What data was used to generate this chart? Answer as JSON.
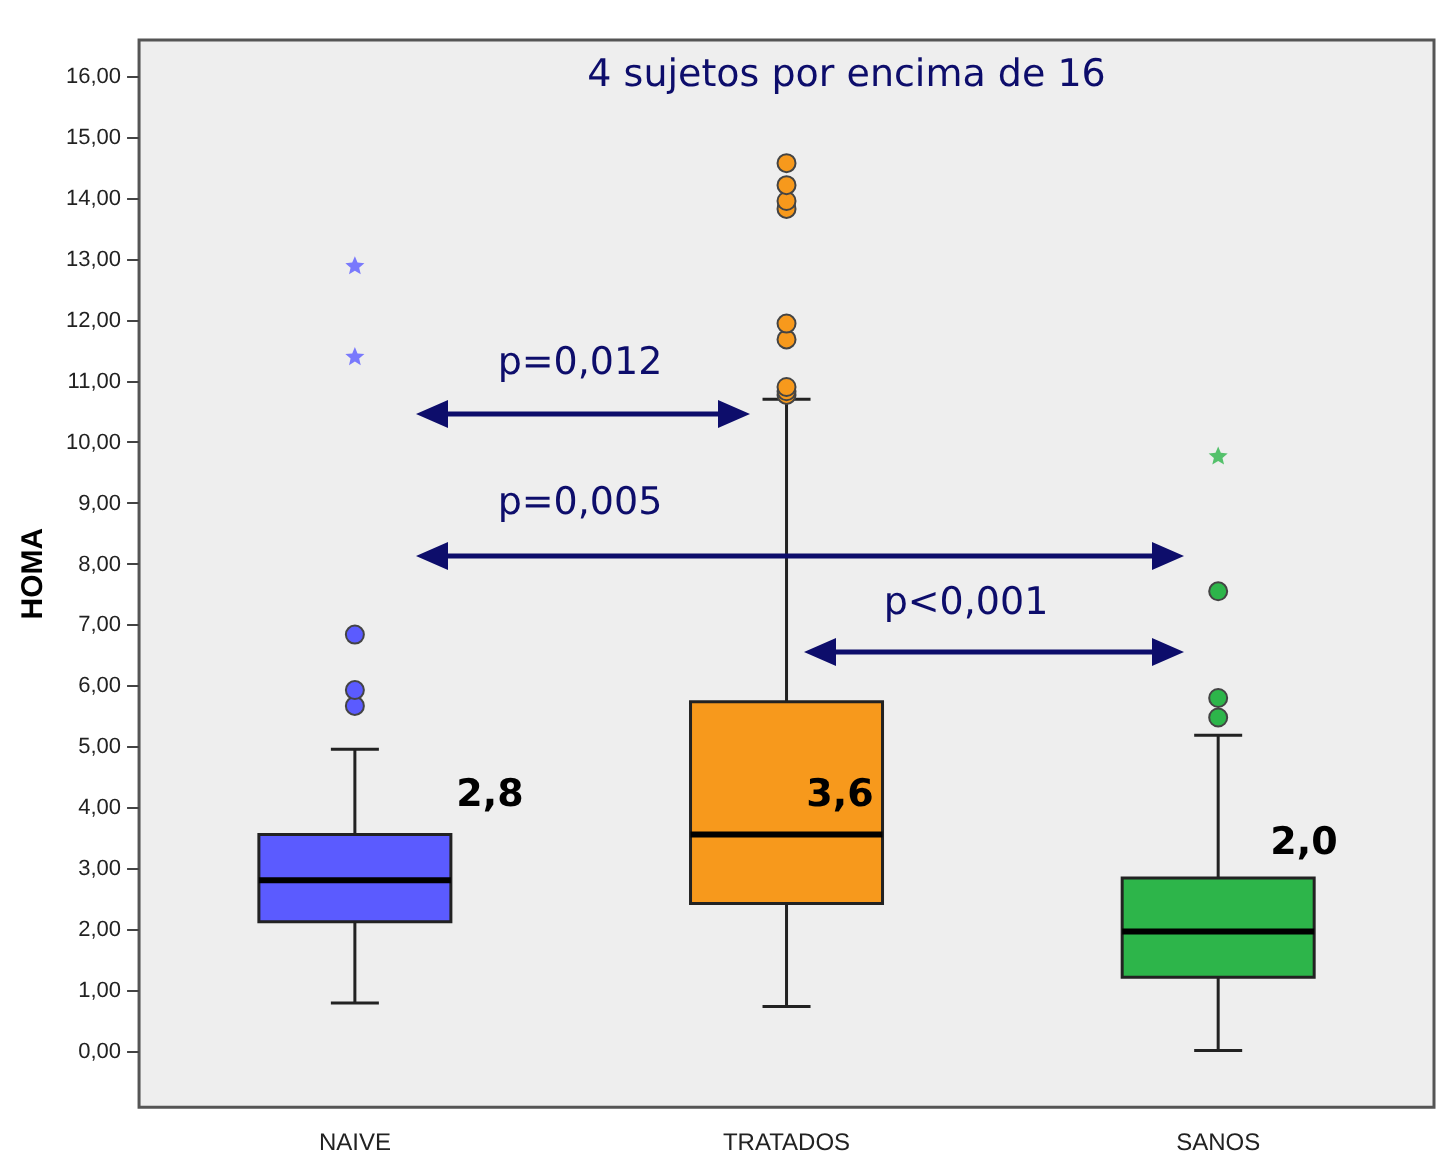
{
  "chart_data": {
    "type": "box",
    "title": "4 sujetos por encima de 16",
    "ylabel": "HOMA",
    "categories": [
      "NAIVE",
      "TRATADOS",
      "SANOS"
    ],
    "colors": [
      "#5b5bff",
      "#f7991c",
      "#2db54a"
    ],
    "boxes": [
      {
        "low": 0.81,
        "q1": 2.14,
        "median": 2.82,
        "q3": 3.57,
        "high": 4.97,
        "outliers": [
          5.68,
          5.94,
          6.85,
          11.4,
          12.89
        ]
      },
      {
        "low": 0.75,
        "q1": 2.44,
        "median": 3.57,
        "q3": 5.75,
        "high": 10.71,
        "outliers": [
          10.78,
          10.84,
          10.91,
          11.69,
          11.95,
          13.83,
          13.96,
          14.22,
          14.58
        ]
      },
      {
        "low": 0.03,
        "q1": 1.23,
        "median": 1.98,
        "q3": 2.86,
        "high": 5.2,
        "outliers": [
          5.49,
          5.81,
          7.56,
          9.77
        ]
      }
    ],
    "ylim": [
      -0.9,
      16.6
    ],
    "yticks": [
      {
        "value": 0,
        "label": "0,00"
      },
      {
        "value": 1,
        "label": "1,00"
      },
      {
        "value": 2,
        "label": "2,00"
      },
      {
        "value": 3,
        "label": "3,00"
      },
      {
        "value": 4,
        "label": "4,00"
      },
      {
        "value": 5,
        "label": "5,00"
      },
      {
        "value": 6,
        "label": "6,00"
      },
      {
        "value": 7,
        "label": "7,00"
      },
      {
        "value": 8,
        "label": "8,00"
      },
      {
        "value": 9,
        "label": "9,00"
      },
      {
        "value": 10,
        "label": "10,00"
      },
      {
        "value": 11,
        "label": "11,00"
      },
      {
        "value": 12,
        "label": "12,00"
      },
      {
        "value": 13,
        "label": "13,00"
      },
      {
        "value": 14,
        "label": "14,00"
      },
      {
        "value": 15,
        "label": "15,00"
      },
      {
        "value": 16,
        "label": "16,00"
      }
    ],
    "annotations": [
      "p=0,012",
      "p=0,005",
      "p<0,001",
      "2,8",
      "3,6",
      "2,0"
    ],
    "grid": false,
    "legend": false
  }
}
